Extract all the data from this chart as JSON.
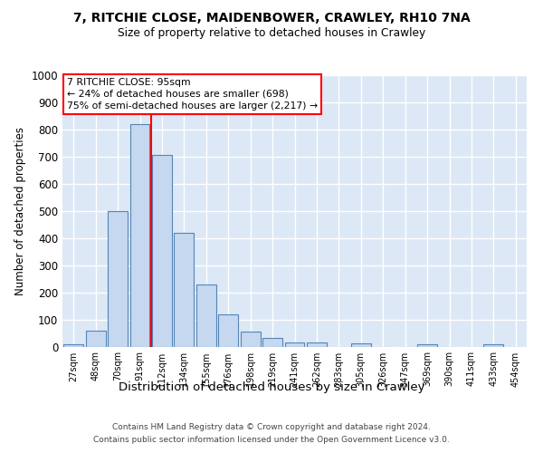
{
  "title1": "7, RITCHIE CLOSE, MAIDENBOWER, CRAWLEY, RH10 7NA",
  "title2": "Size of property relative to detached houses in Crawley",
  "xlabel": "Distribution of detached houses by size in Crawley",
  "ylabel": "Number of detached properties",
  "categories": [
    "27sqm",
    "48sqm",
    "70sqm",
    "91sqm",
    "112sqm",
    "134sqm",
    "155sqm",
    "176sqm",
    "198sqm",
    "219sqm",
    "241sqm",
    "262sqm",
    "283sqm",
    "305sqm",
    "326sqm",
    "347sqm",
    "369sqm",
    "390sqm",
    "411sqm",
    "433sqm",
    "454sqm"
  ],
  "bar_values": [
    8,
    57,
    500,
    820,
    706,
    418,
    228,
    117,
    55,
    33,
    15,
    15,
    0,
    13,
    0,
    0,
    10,
    0,
    0,
    10,
    0
  ],
  "bar_color": "#c5d8f0",
  "bar_edge_color": "#5585b5",
  "bg_color": "#dce8f5",
  "ylim": [
    0,
    1000
  ],
  "yticks": [
    0,
    100,
    200,
    300,
    400,
    500,
    600,
    700,
    800,
    900,
    1000
  ],
  "vline_x": 3.5,
  "annotation_line1": "7 RITCHIE CLOSE: 95sqm",
  "annotation_line2": "← 24% of detached houses are smaller (698)",
  "annotation_line3": "75% of semi-detached houses are larger (2,217) →",
  "footer1": "Contains HM Land Registry data © Crown copyright and database right 2024.",
  "footer2": "Contains public sector information licensed under the Open Government Licence v3.0."
}
